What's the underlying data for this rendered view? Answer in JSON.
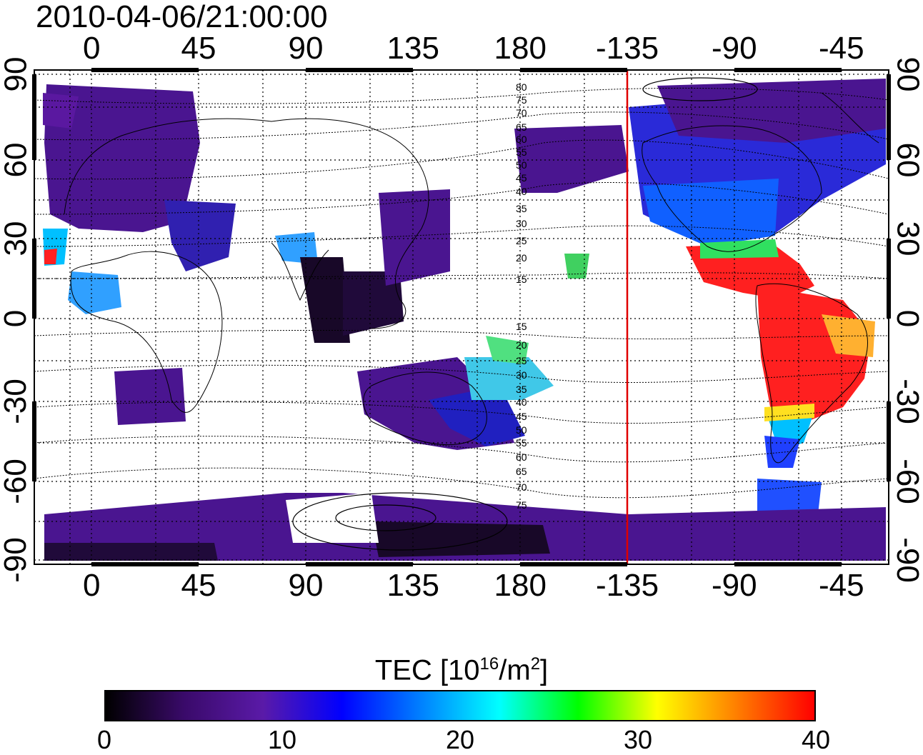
{
  "title": "2010-04-06/21:00:00",
  "map": {
    "top_axis_labels": [
      "0",
      "45",
      "90",
      "135",
      "180",
      "-135",
      "-90",
      "-45"
    ],
    "bottom_axis_labels": [
      "0",
      "45",
      "90",
      "135",
      "180",
      "-135",
      "-90",
      "-45"
    ],
    "left_axis_labels": [
      "90",
      "60",
      "30",
      "0",
      "-30",
      "-60",
      "-90"
    ],
    "right_axis_labels": [
      "90",
      "60",
      "30",
      "0",
      "-30",
      "-60",
      "-90"
    ],
    "contour_labels": [
      "80",
      "75",
      "70",
      "65",
      "60",
      "55",
      "50",
      "45",
      "40",
      "35",
      "30",
      "25",
      "20",
      "15",
      "15",
      "20",
      "25",
      "30",
      "35",
      "40",
      "45",
      "50",
      "55",
      "60",
      "65",
      "70",
      "75"
    ],
    "terminator_longitude": -135,
    "terminator_color": "#e00000"
  },
  "colorbar": {
    "title_prefix": "TEC  [10",
    "title_exp1": "16",
    "title_mid": "/m",
    "title_exp2": "2",
    "title_suffix": "]",
    "labels": [
      "0",
      "10",
      "20",
      "30",
      "40"
    ],
    "colors": [
      "#000000",
      "#3a0a6a",
      "#5a1aa8",
      "#0000ff",
      "#0080ff",
      "#00ffff",
      "#00ff00",
      "#ffff00",
      "#ff8000",
      "#ff0000"
    ]
  }
}
